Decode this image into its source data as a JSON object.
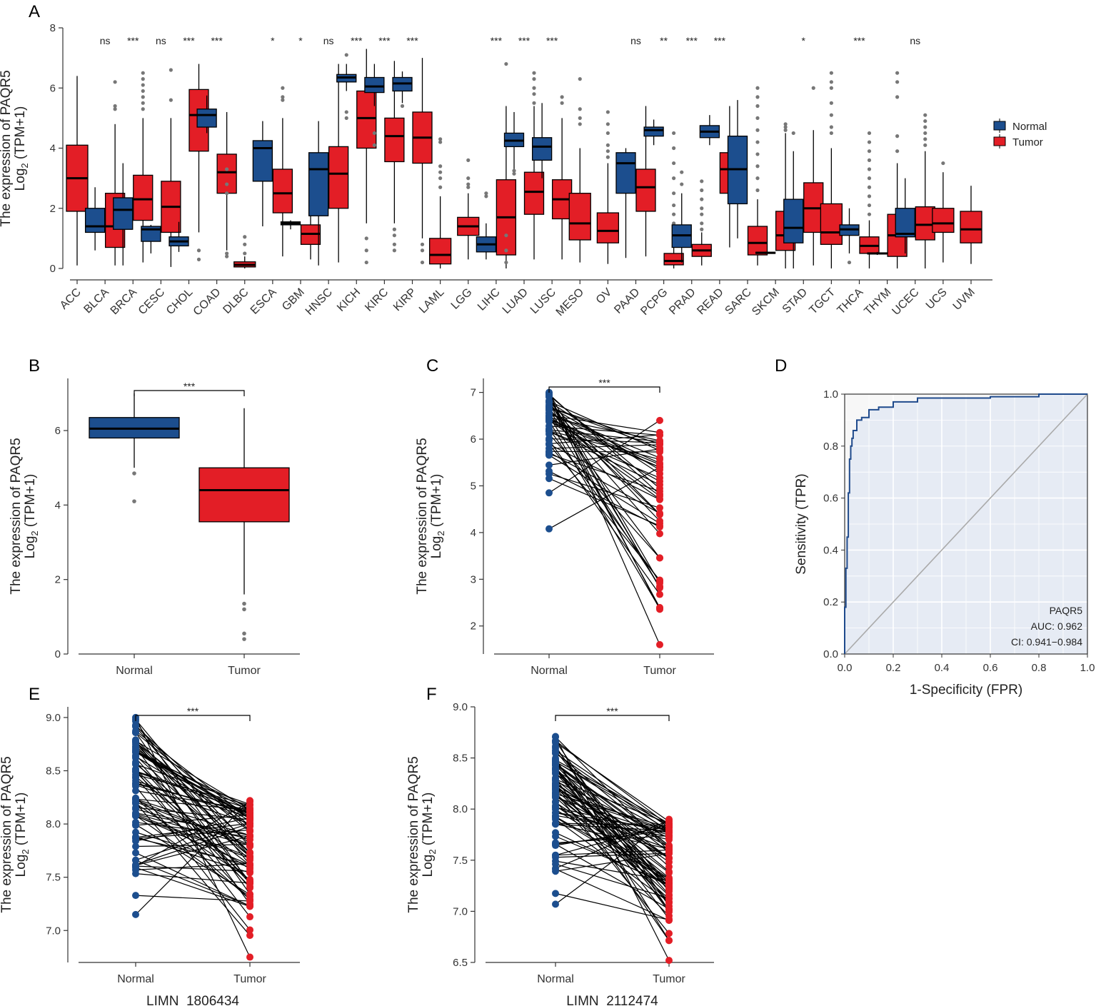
{
  "colors": {
    "normal": "#1c4e8e",
    "tumor": "#e31e26",
    "outlier": "#777777",
    "axis": "#333333",
    "roc_line": "#1f4a8c",
    "roc_fill": "#e6ebf4",
    "diag": "#aaaaaa"
  },
  "panel_letters": {
    "A": "A",
    "B": "B",
    "C": "C",
    "D": "D",
    "E": "E",
    "F": "F"
  },
  "chart_data": [
    {
      "panel": "A",
      "type": "box",
      "ylabel_line1": "The expression of PAQR5",
      "ylabel_line2": "Log",
      "ylabel_sub": "2",
      "ylabel_tail": " (TPM+1)",
      "ylim": [
        0,
        8
      ],
      "yticks": [
        "0",
        "2",
        "4",
        "6",
        "8"
      ],
      "legend": {
        "normal": "Normal",
        "tumor": "Tumor"
      },
      "categories": [
        {
          "name": "ACC",
          "sig": "",
          "normal": null,
          "tumor": [
            0.1,
            1.9,
            3.0,
            4.1,
            6.4
          ],
          "tumor_out": []
        },
        {
          "name": "BLCA",
          "sig": "ns",
          "normal": [
            0.6,
            1.2,
            1.4,
            2.0,
            2.7
          ],
          "tumor": [
            0.1,
            0.7,
            1.4,
            2.5,
            4.8
          ],
          "normal_out": [],
          "tumor_out": [
            5.3,
            5.4,
            6.2
          ]
        },
        {
          "name": "BRCA",
          "sig": "***",
          "normal": [
            0.1,
            1.3,
            1.95,
            2.35,
            3.5
          ],
          "tumor": [
            0.2,
            1.6,
            2.3,
            3.1,
            5.0
          ],
          "normal_out": [],
          "tumor_out": [
            5.3,
            5.5,
            5.7,
            5.9,
            6.1,
            6.3,
            6.5
          ]
        },
        {
          "name": "CESC",
          "sig": "ns",
          "normal": [
            0.5,
            0.9,
            1.3,
            1.4,
            1.45
          ],
          "tumor": [
            0.05,
            1.2,
            2.05,
            2.9,
            5.0
          ],
          "normal_out": [],
          "tumor_out": [
            5.6,
            6.6
          ]
        },
        {
          "name": "CHOL",
          "sig": "***",
          "normal": [
            0.55,
            0.75,
            0.9,
            1.05,
            1.55
          ],
          "tumor": [
            1.2,
            3.9,
            5.1,
            5.95,
            6.8
          ],
          "normal_out": [],
          "tumor_out": [
            0.3,
            0.6
          ]
        },
        {
          "name": "COAD",
          "sig": "***",
          "normal": [
            4.5,
            4.7,
            5.1,
            5.3,
            5.75
          ],
          "tumor": [
            0.6,
            2.5,
            3.2,
            3.8,
            5.2
          ],
          "normal_out": [],
          "tumor_out": [
            0.4,
            0.5,
            2.5,
            2.8,
            3.3
          ]
        },
        {
          "name": "DLBC",
          "sig": "",
          "normal": null,
          "tumor": [
            0.0,
            0.05,
            0.12,
            0.22,
            0.4
          ],
          "tumor_out": [
            0.5,
            0.8,
            1.05
          ]
        },
        {
          "name": "ESCA",
          "sig": "*",
          "normal": [
            1.4,
            2.9,
            4.0,
            4.25,
            4.9
          ],
          "tumor": [
            0.4,
            1.85,
            2.5,
            3.3,
            5.0
          ],
          "normal_out": [],
          "tumor_out": [
            5.6,
            5.7,
            6.0
          ]
        },
        {
          "name": "GBM",
          "sig": "*",
          "normal": [
            1.3,
            1.45,
            1.5,
            1.55,
            1.6
          ],
          "tumor": [
            0.3,
            0.8,
            1.15,
            1.45,
            2.2
          ],
          "normal_out": [],
          "tumor_out": [
            2.6,
            2.8,
            3.0
          ]
        },
        {
          "name": "HNSC",
          "sig": "ns",
          "normal": [
            0.1,
            1.75,
            3.3,
            3.85,
            4.9
          ],
          "tumor": [
            0.2,
            2.0,
            3.15,
            4.05,
            6.8
          ],
          "normal_out": [],
          "tumor_out": []
        },
        {
          "name": "KICH",
          "sig": "***",
          "normal": [
            5.9,
            6.2,
            6.35,
            6.45,
            6.8
          ],
          "tumor": [
            1.5,
            4.0,
            5.0,
            5.9,
            7.3
          ],
          "normal_out": [
            5.0,
            5.2,
            7.1
          ],
          "tumor_out": [
            0.2,
            0.6,
            1.0
          ]
        },
        {
          "name": "KIRC",
          "sig": "***",
          "normal": [
            5.4,
            5.85,
            6.05,
            6.35,
            6.8
          ],
          "tumor": [
            1.5,
            3.55,
            4.4,
            5.0,
            6.9
          ],
          "normal_out": [
            4.1,
            4.5
          ],
          "tumor_out": [
            0.6,
            0.8,
            1.1,
            1.3
          ]
        },
        {
          "name": "KIRP",
          "sig": "***",
          "normal": [
            5.5,
            5.9,
            6.15,
            6.35,
            6.55
          ],
          "tumor": [
            1.0,
            3.5,
            4.35,
            5.2,
            7.0
          ],
          "normal_out": [
            5.4
          ],
          "tumor_out": [
            0.2,
            0.6,
            0.8
          ]
        },
        {
          "name": "LAML",
          "sig": "",
          "normal": null,
          "tumor": [
            0.0,
            0.15,
            0.45,
            1.0,
            2.4
          ],
          "tumor_out": [
            2.7,
            3.0,
            3.2,
            3.4,
            4.2,
            4.3
          ]
        },
        {
          "name": "LGG",
          "sig": "",
          "normal": null,
          "tumor": [
            0.3,
            1.1,
            1.4,
            1.7,
            2.5
          ],
          "tumor_out": [
            2.7,
            2.8,
            3.0,
            3.6
          ]
        },
        {
          "name": "LIHC",
          "sig": "***",
          "normal": [
            0.3,
            0.55,
            0.8,
            1.05,
            1.5
          ],
          "tumor": [
            0.0,
            0.45,
            1.7,
            2.95,
            5.4
          ],
          "normal_out": [
            2.4,
            2.5
          ],
          "tumor_out": [
            0.2,
            0.6,
            1.1,
            6.8
          ]
        },
        {
          "name": "LUAD",
          "sig": "***",
          "normal": [
            3.3,
            4.05,
            4.25,
            4.5,
            5.2
          ],
          "tumor": [
            0.3,
            1.8,
            2.55,
            3.2,
            5.4
          ],
          "normal_out": [
            3.15,
            3.25
          ],
          "tumor_out": [
            5.5,
            5.8,
            6.0,
            6.3,
            6.5
          ]
        },
        {
          "name": "LUSC",
          "sig": "***",
          "normal": [
            3.0,
            3.6,
            4.05,
            4.35,
            5.5
          ],
          "tumor": [
            0.3,
            1.65,
            2.3,
            2.95,
            5.0
          ],
          "normal_out": [],
          "tumor_out": [
            5.5,
            5.7
          ]
        },
        {
          "name": "MESO",
          "sig": "",
          "normal": null,
          "tumor": [
            0.2,
            0.95,
            1.5,
            2.5,
            4.0
          ],
          "tumor_out": [
            4.8,
            5.0,
            5.3,
            6.3
          ]
        },
        {
          "name": "OV",
          "sig": "",
          "normal": null,
          "tumor": [
            0.15,
            0.85,
            1.25,
            1.85,
            3.5
          ],
          "tumor_out": [
            3.7,
            3.9,
            4.1,
            4.5,
            4.8,
            5.2
          ]
        },
        {
          "name": "PAAD",
          "sig": "ns",
          "normal": [
            0.35,
            2.5,
            3.5,
            3.85,
            4.0
          ],
          "tumor": [
            0.4,
            1.9,
            2.7,
            3.3,
            5.4
          ],
          "normal_out": [],
          "tumor_out": []
        },
        {
          "name": "PCPG",
          "sig": "**",
          "normal": [
            4.1,
            4.4,
            4.6,
            4.7,
            4.95
          ],
          "tumor": [
            0.0,
            0.12,
            0.25,
            0.5,
            1.0
          ],
          "normal_out": [],
          "tumor_out": [
            1.2,
            1.5,
            1.8,
            2.1,
            2.5,
            3.0,
            3.5,
            4.0,
            4.5
          ]
        },
        {
          "name": "PRAD",
          "sig": "***",
          "normal": [
            0.2,
            0.7,
            1.1,
            1.45,
            2.5
          ],
          "tumor": [
            0.1,
            0.4,
            0.6,
            0.8,
            1.2
          ],
          "normal_out": [
            2.8,
            3.2
          ],
          "tumor_out": [
            1.3,
            1.5,
            1.8,
            2.0,
            2.3,
            2.6,
            2.9
          ]
        },
        {
          "name": "READ",
          "sig": "***",
          "normal": [
            4.1,
            4.35,
            4.55,
            4.75,
            5.1
          ],
          "tumor": [
            0.7,
            2.5,
            3.3,
            3.85,
            5.4
          ],
          "normal_out": [],
          "tumor_out": []
        },
        {
          "name": "SARC",
          "sig": "",
          "normal": [
            1.0,
            2.15,
            3.3,
            4.4,
            5.6
          ],
          "tumor": [
            0.1,
            0.45,
            0.85,
            1.4,
            2.3
          ],
          "normal_out": [],
          "tumor_out": [
            2.6,
            3.0,
            3.4,
            3.8,
            4.2,
            4.6,
            5.0,
            5.4,
            5.7,
            6.0
          ]
        },
        {
          "name": "SKCM",
          "sig": "",
          "normal": [
            0.48,
            0.5,
            0.52,
            0.54,
            0.56
          ],
          "tumor": [
            0.0,
            0.6,
            1.1,
            1.9,
            4.5
          ],
          "normal_out": [],
          "tumor_out": [
            4.6,
            4.7,
            4.8
          ]
        },
        {
          "name": "STAD",
          "sig": "*",
          "normal": [
            0.0,
            0.85,
            1.35,
            2.3,
            3.9
          ],
          "tumor": [
            0.1,
            1.2,
            2.0,
            2.85,
            4.6
          ],
          "normal_out": [
            4.5
          ],
          "tumor_out": [
            6.0
          ]
        },
        {
          "name": "TGCT",
          "sig": "",
          "normal": null,
          "tumor": [
            0.0,
            0.8,
            1.2,
            2.15,
            4.0
          ],
          "tumor_out": [
            4.5,
            4.7,
            5.1,
            5.5,
            6.0,
            6.2,
            6.5
          ]
        },
        {
          "name": "THCA",
          "sig": "***",
          "normal": [
            0.5,
            1.1,
            1.3,
            1.45,
            2.0
          ],
          "tumor": [
            0.0,
            0.5,
            0.75,
            1.05,
            1.6
          ],
          "normal_out": [
            0.2
          ],
          "tumor_out": [
            1.8,
            2.1,
            2.4,
            2.7,
            3.0,
            3.3,
            3.6,
            3.9,
            4.2,
            4.5
          ]
        },
        {
          "name": "THYM",
          "sig": "",
          "normal": [
            0.45,
            0.48,
            0.5,
            0.52,
            0.55
          ],
          "tumor": [
            0.0,
            0.4,
            1.1,
            1.8,
            3.5
          ],
          "normal_out": [],
          "tumor_out": [
            3.9,
            4.4,
            5.7,
            6.2,
            6.5
          ]
        },
        {
          "name": "UCEC",
          "sig": "ns",
          "normal": [
            0.5,
            1.05,
            1.15,
            2.0,
            3.0
          ],
          "tumor": [
            0.0,
            0.95,
            1.45,
            2.05,
            3.9
          ],
          "normal_out": [],
          "tumor_out": [
            4.1,
            4.3,
            4.5,
            4.7,
            4.9,
            5.1
          ]
        },
        {
          "name": "UCS",
          "sig": "",
          "normal": null,
          "tumor": [
            0.2,
            1.2,
            1.5,
            2.0,
            3.2
          ],
          "tumor_out": [
            3.5
          ]
        },
        {
          "name": "UVM",
          "sig": "",
          "normal": null,
          "tumor": [
            0.15,
            0.85,
            1.3,
            1.9,
            2.75
          ],
          "tumor_out": []
        }
      ]
    },
    {
      "panel": "B",
      "type": "box",
      "ylabel_line1": "The expression of PAQR5",
      "ylabel_line2": "Log",
      "ylabel_sub": "2",
      "ylabel_tail": " (TPM+1)",
      "ylim": [
        0,
        7.4
      ],
      "yticks": [
        "0",
        "2",
        "4",
        "6"
      ],
      "categories": [
        "Normal",
        "Tumor"
      ],
      "sig": "***",
      "normal": [
        5.0,
        5.8,
        6.05,
        6.35,
        7.0
      ],
      "tumor": [
        1.6,
        3.55,
        4.4,
        5.0,
        6.6
      ],
      "normal_out": [
        4.1,
        4.85
      ],
      "tumor_out": [
        0.4,
        0.55,
        1.2,
        1.35
      ]
    },
    {
      "panel": "C",
      "type": "paired",
      "ylabel_line1": "The expression of PAQR5",
      "ylabel_line2": "Log",
      "ylabel_sub": "2",
      "ylabel_tail": " (TPM+1)",
      "ylim": [
        1.4,
        7.3
      ],
      "yticks": [
        "2",
        "3",
        "4",
        "5",
        "6",
        "7"
      ],
      "categories": [
        "Normal",
        "Tumor"
      ],
      "sig": "***",
      "n_pairs": 50,
      "normal_range": [
        4.85,
        7.0
      ],
      "tumor_range": [
        1.6,
        6.4
      ],
      "normal_extra": [
        4.08
      ],
      "tumor_extra": [
        5.4
      ],
      "seed": 11
    },
    {
      "panel": "D",
      "type": "roc",
      "xlabel": "1-Specificity (FPR)",
      "ylabel": "Sensitivity (TPR)",
      "xticks": [
        "0.0",
        "0.2",
        "0.4",
        "0.6",
        "0.8",
        "1.0"
      ],
      "yticks": [
        "0.0",
        "0.2",
        "0.4",
        "0.6",
        "0.8",
        "1.0"
      ],
      "gene": "PAQR5",
      "auc": "AUC: 0.962",
      "ci": "CI: 0.941−0.984",
      "fpr": [
        0.0,
        0.0,
        0.005,
        0.005,
        0.01,
        0.01,
        0.015,
        0.015,
        0.02,
        0.02,
        0.025,
        0.025,
        0.03,
        0.03,
        0.035,
        0.035,
        0.05,
        0.05,
        0.07,
        0.07,
        0.1,
        0.1,
        0.14,
        0.14,
        0.2,
        0.2,
        0.3,
        0.3,
        0.6,
        0.6,
        0.8,
        0.8,
        1.0
      ],
      "tpr": [
        0.0,
        0.18,
        0.18,
        0.33,
        0.33,
        0.45,
        0.45,
        0.62,
        0.62,
        0.75,
        0.75,
        0.8,
        0.8,
        0.83,
        0.83,
        0.86,
        0.86,
        0.9,
        0.9,
        0.91,
        0.91,
        0.94,
        0.94,
        0.95,
        0.95,
        0.97,
        0.97,
        0.985,
        0.985,
        0.99,
        0.99,
        1.0,
        1.0
      ]
    },
    {
      "panel": "E",
      "type": "paired",
      "ylabel_line1": "The expression of PAQR5",
      "ylabel_line2": "Log",
      "ylabel_sub": "2",
      "ylabel_tail": " (TPM+1)",
      "xlabel": "LIMN_1806434",
      "ylim": [
        6.7,
        9.1
      ],
      "yticks": [
        "7.0",
        "7.5",
        "8.0",
        "8.5",
        "9.0"
      ],
      "categories": [
        "Normal",
        "Tumor"
      ],
      "sig": "***",
      "n_pairs": 80,
      "normal_range": [
        7.15,
        9.0
      ],
      "tumor_range": [
        6.75,
        8.22
      ],
      "normal_extra": [],
      "tumor_extra": [],
      "seed": 5
    },
    {
      "panel": "F",
      "type": "paired",
      "ylabel_line1": "The expression of PAQR5",
      "ylabel_line2": "Log",
      "ylabel_sub": "2",
      "ylabel_tail": " (TPM+1)",
      "xlabel": "LIMN_2112474",
      "ylim": [
        6.5,
        9.0
      ],
      "yticks": [
        "6.5",
        "7.0",
        "7.5",
        "8.0",
        "8.5",
        "9.0"
      ],
      "categories": [
        "Normal",
        "Tumor"
      ],
      "sig": "***",
      "n_pairs": 80,
      "normal_range": [
        7.07,
        8.71
      ],
      "tumor_range": [
        6.52,
        7.9
      ],
      "normal_extra": [],
      "tumor_extra": [],
      "seed": 23
    }
  ]
}
